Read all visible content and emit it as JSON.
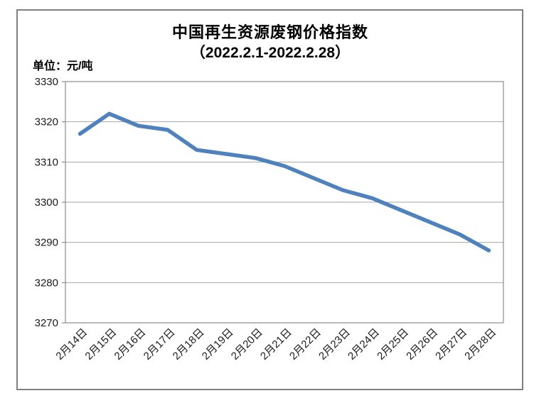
{
  "chart_data": {
    "type": "line",
    "title": "中国再生资源废钢价格指数",
    "subtitle": "（2022.2.1-2022.2.28）",
    "ylabel": "单位：元/吨",
    "categories": [
      "2月14日",
      "2月15日",
      "2月16日",
      "2月17日",
      "2月18日",
      "2月19日",
      "2月20日",
      "2月21日",
      "2月22日",
      "2月23日",
      "2月24日",
      "2月25日",
      "2月26日",
      "2月27日",
      "2月28日"
    ],
    "values": [
      3317,
      3322,
      3319,
      3318,
      3313,
      3312,
      3311,
      3309,
      3306,
      3303,
      3301,
      3298,
      3295,
      3292,
      3288
    ],
    "ylim": [
      3270,
      3330
    ],
    "yticks": [
      3330,
      3320,
      3310,
      3300,
      3290,
      3280,
      3270
    ],
    "grid": true,
    "legend": false,
    "line_color": "#4F81BD",
    "gridline_color": "#A6A6A6",
    "axis_color": "#8C8C8C",
    "frame_color": "#808080",
    "label_color": "#1A1A1A",
    "title_color": "#000000"
  }
}
